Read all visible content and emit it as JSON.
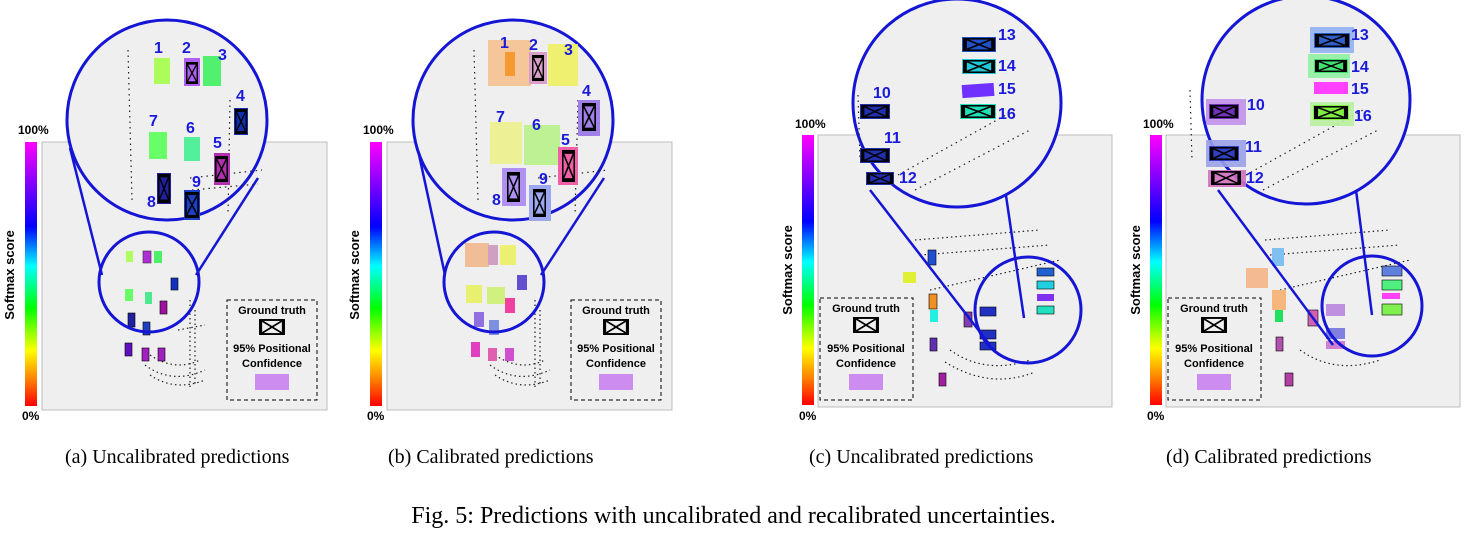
{
  "caption": "Fig. 5: Predictions with uncalibrated and recalibrated uncertainties.",
  "panels": [
    {
      "id": "a",
      "caption": "(a) Uncalibrated predictions",
      "colorbar_top": "100%",
      "colorbar_bottom": "0%",
      "colorbar_label": "Softmax score",
      "legend": {
        "ground_truth": "Ground truth",
        "confidence_line1": "95% Positional",
        "confidence_line2": "Confidence"
      },
      "object_labels": [
        "1",
        "2",
        "3",
        "4",
        "5",
        "6",
        "7",
        "8",
        "9"
      ]
    },
    {
      "id": "b",
      "caption": "(b) Calibrated predictions",
      "colorbar_top": "100%",
      "colorbar_bottom": "0%",
      "colorbar_label": "Softmax score",
      "legend": {
        "ground_truth": "Ground truth",
        "confidence_line1": "95% Positional",
        "confidence_line2": "Confidence"
      },
      "object_labels": [
        "1",
        "2",
        "3",
        "4",
        "5",
        "6",
        "7",
        "8",
        "9"
      ]
    },
    {
      "id": "c",
      "caption": "(c) Uncalibrated predictions",
      "colorbar_top": "100%",
      "colorbar_bottom": "0%",
      "colorbar_label": "Softmax score",
      "legend": {
        "ground_truth": "Ground truth",
        "confidence_line1": "95% Positional",
        "confidence_line2": "Confidence"
      },
      "object_labels": [
        "10",
        "11",
        "12",
        "13",
        "14",
        "15",
        "16"
      ]
    },
    {
      "id": "d",
      "caption": "(d) Calibrated predictions",
      "colorbar_top": "100%",
      "colorbar_bottom": "0%",
      "colorbar_label": "Softmax score",
      "legend": {
        "ground_truth": "Ground truth",
        "confidence_line1": "95% Positional",
        "confidence_line2": "Confidence"
      },
      "object_labels": [
        "10",
        "11",
        "12",
        "13",
        "14",
        "15",
        "16"
      ]
    }
  ],
  "colors": {
    "circle": "#1515d6",
    "label": "#1a1adb",
    "scene_bg": "#efefef",
    "confidence": "#c77bf0",
    "colormap": [
      "#ff00ff",
      "#8000ff",
      "#0000ff",
      "#00ffff",
      "#00ff00",
      "#ffff00",
      "#ff8000",
      "#ff0000"
    ]
  }
}
